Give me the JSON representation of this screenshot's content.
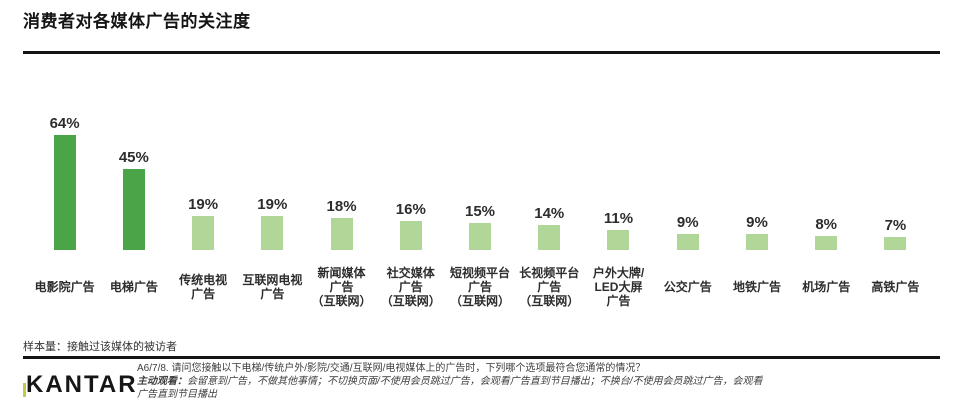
{
  "page": {
    "title": "消费者对各媒体广告的关注度",
    "sample_note": "样本量：接触过该媒体的被访者"
  },
  "chart_data": {
    "type": "bar",
    "title": "消费者对各媒体广告的关注度",
    "unit": "%",
    "ylim": [
      0,
      70
    ],
    "grid": false,
    "legend": false,
    "categories": [
      "电影院广告",
      "电梯广告",
      "传统电视广告",
      "互联网电视广告",
      "新闻媒体广告（互联网）",
      "社交媒体广告（互联网）",
      "短视频平台广告（互联网）",
      "长视频平台广告（互联网）",
      "户外大牌/LED大屏广告",
      "公交广告",
      "地铁广告",
      "机场广告",
      "高铁广告"
    ],
    "values": [
      64,
      45,
      19,
      19,
      18,
      16,
      15,
      14,
      11,
      9,
      9,
      8,
      7
    ],
    "bars": [
      {
        "value": 64,
        "display": "64%",
        "label_lines": [
          "电影院广告"
        ],
        "color_key": "dark_green"
      },
      {
        "value": 45,
        "display": "45%",
        "label_lines": [
          "电梯广告"
        ],
        "color_key": "dark_green"
      },
      {
        "value": 19,
        "display": "19%",
        "label_lines": [
          "传统电视",
          "广告"
        ],
        "color_key": "light_green"
      },
      {
        "value": 19,
        "display": "19%",
        "label_lines": [
          "互联网电视",
          "广告"
        ],
        "color_key": "light_green"
      },
      {
        "value": 18,
        "display": "18%",
        "label_lines": [
          "新闻媒体",
          "广告",
          "（互联网）"
        ],
        "color_key": "light_green"
      },
      {
        "value": 16,
        "display": "16%",
        "label_lines": [
          "社交媒体",
          "广告",
          "（互联网）"
        ],
        "color_key": "light_green"
      },
      {
        "value": 15,
        "display": "15%",
        "label_lines": [
          "短视频平台",
          "广告",
          "（互联网）"
        ],
        "color_key": "light_green"
      },
      {
        "value": 14,
        "display": "14%",
        "label_lines": [
          "长视频平台",
          "广告",
          "（互联网）"
        ],
        "color_key": "light_green"
      },
      {
        "value": 11,
        "display": "11%",
        "label_lines": [
          "户外大牌/",
          "LED大屏",
          "广告"
        ],
        "color_key": "light_green"
      },
      {
        "value": 9,
        "display": "9%",
        "label_lines": [
          "公交广告"
        ],
        "color_key": "light_green"
      },
      {
        "value": 9,
        "display": "9%",
        "label_lines": [
          "地铁广告"
        ],
        "color_key": "light_green"
      },
      {
        "value": 8,
        "display": "8%",
        "label_lines": [
          "机场广告"
        ],
        "color_key": "light_green"
      },
      {
        "value": 7,
        "display": "7%",
        "label_lines": [
          "高铁广告"
        ],
        "color_key": "light_green"
      }
    ],
    "colors": {
      "dark_green": "#4ba447",
      "light_green": "#b0d698"
    }
  },
  "footer": {
    "logo_text": "KANTAR",
    "logo_accent_color": "#c3ca45",
    "question_line": "A6/7/8. 请问您接触以下电梯/传统户外/影院/交通/互联网/电视媒体上的广告时，下列哪个选项最符合您通常的情况？",
    "note_lead": "主动观看：",
    "note_body": "会留意到广告，不做其他事情；不切换页面/不使用会员跳过广告，会观看广告直到节目播出；不换台/不使用会员跳过广告，会观看",
    "note_continued": "广告直到节目播出"
  }
}
